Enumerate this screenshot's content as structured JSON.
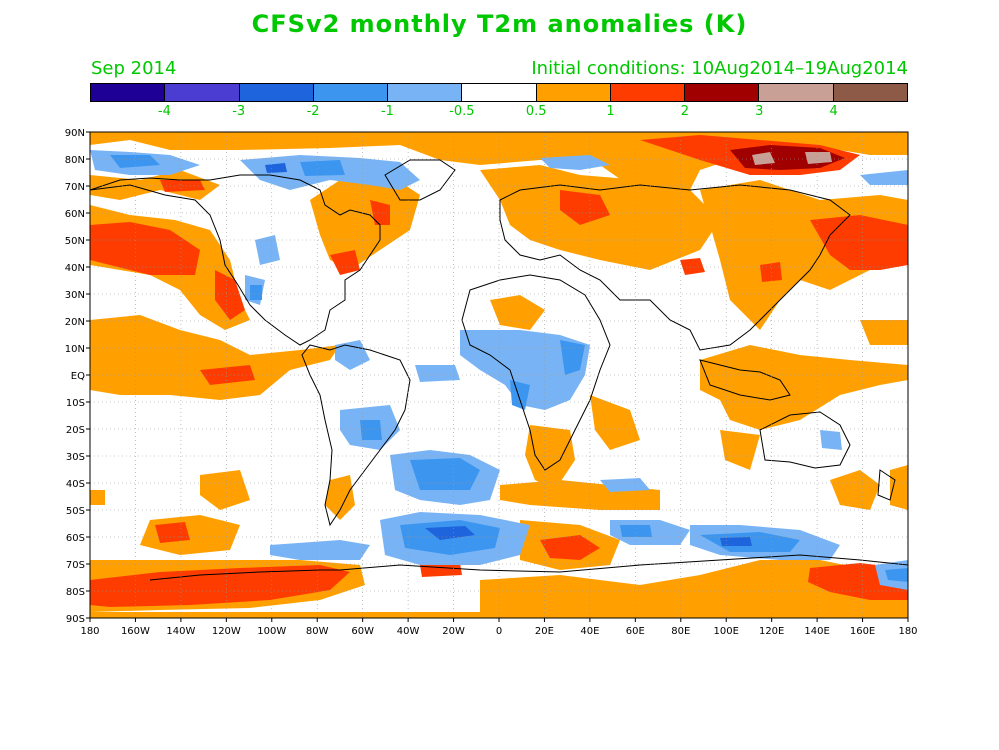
{
  "title": "CFSv2 monthly T2m anomalies (K)",
  "subtitle_left": "Sep 2014",
  "subtitle_right": "Initial conditions: 10Aug2014–19Aug2014",
  "colorbar": {
    "colors": [
      "#1e0096",
      "#4b3cd2",
      "#1e64dc",
      "#3c96f0",
      "#78b4f5",
      "#ffffff",
      "#ffa000",
      "#ff3c00",
      "#a00000",
      "#c8a096",
      "#8c5a46"
    ],
    "tick_labels": [
      "-4",
      "-3",
      "-2",
      "-1",
      "-0.5",
      "0.5",
      "1",
      "2",
      "3",
      "4"
    ]
  },
  "axes": {
    "lat_labels": [
      "90N",
      "80N",
      "70N",
      "60N",
      "50N",
      "40N",
      "30N",
      "20N",
      "10N",
      "EQ",
      "10S",
      "20S",
      "30S",
      "40S",
      "50S",
      "60S",
      "70S",
      "80S",
      "90S"
    ],
    "lon_labels": [
      "180",
      "160W",
      "140W",
      "120W",
      "100W",
      "80W",
      "60W",
      "40W",
      "20W",
      "0",
      "20E",
      "40E",
      "60E",
      "80E",
      "100E",
      "120E",
      "140E",
      "160E",
      "180"
    ]
  },
  "map_colors": {
    "warm1": "#ffa000",
    "warm2": "#ff3c00",
    "warm3": "#a00000",
    "warm4": "#c8a096",
    "cold1": "#78b4f5",
    "cold2": "#3c96f0",
    "cold3": "#1e64dc",
    "coast": "#000000"
  }
}
